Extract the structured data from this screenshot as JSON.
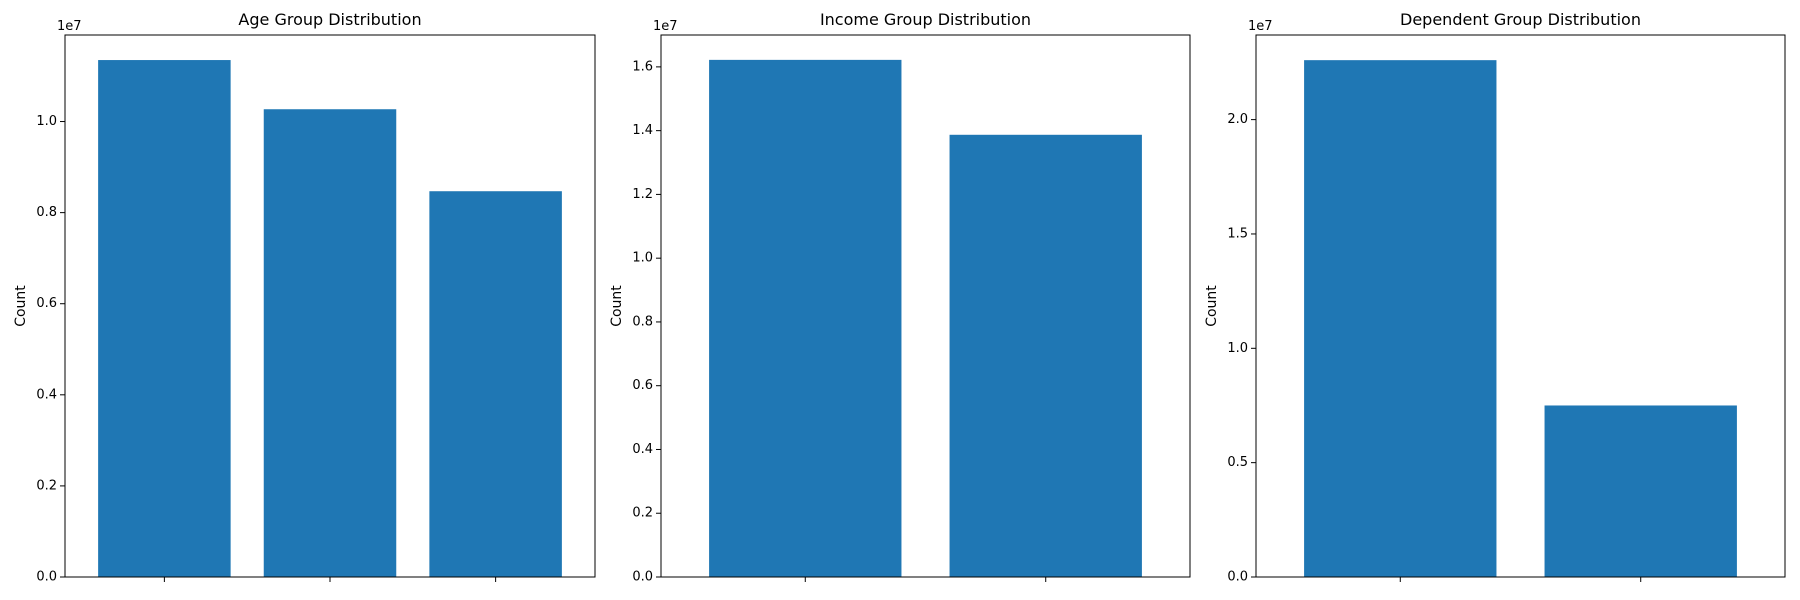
{
  "bar_color": "#1f77b4",
  "chart_data": [
    {
      "type": "bar",
      "title": "Age Group Distribution",
      "xlabel": "",
      "ylabel": "Count",
      "offset_text": "1e7",
      "scale": 10000000,
      "categories": [
        "",
        "",
        ""
      ],
      "values": [
        11350000,
        10270000,
        8470000
      ],
      "ylim": [
        0,
        11900000
      ],
      "yticks": [
        0,
        2000000,
        4000000,
        6000000,
        8000000,
        10000000
      ],
      "ytick_labels": [
        "0.0",
        "0.2",
        "0.4",
        "0.6",
        "0.8",
        "1.0"
      ],
      "grid": false,
      "legend": "none"
    },
    {
      "type": "bar",
      "title": "Income Group Distribution",
      "xlabel": "",
      "ylabel": "Count",
      "offset_text": "1e7",
      "scale": 10000000,
      "categories": [
        "",
        ""
      ],
      "values": [
        16220000,
        13870000
      ],
      "ylim": [
        0,
        17000000
      ],
      "yticks": [
        0,
        2000000,
        4000000,
        6000000,
        8000000,
        10000000,
        12000000,
        14000000,
        16000000
      ],
      "ytick_labels": [
        "0.0",
        "0.2",
        "0.4",
        "0.6",
        "0.8",
        "1.0",
        "1.2",
        "1.4",
        "1.6"
      ],
      "grid": false,
      "legend": "none"
    },
    {
      "type": "bar",
      "title": "Dependent Group Distribution",
      "xlabel": "",
      "ylabel": "Count",
      "offset_text": "1e7",
      "scale": 10000000,
      "categories": [
        "",
        ""
      ],
      "values": [
        22600000,
        7500000
      ],
      "ylim": [
        0,
        23700000
      ],
      "yticks": [
        0,
        5000000,
        10000000,
        15000000,
        20000000
      ],
      "ytick_labels": [
        "0.0",
        "0.5",
        "1.0",
        "1.5",
        "2.0"
      ],
      "grid": false,
      "legend": "none"
    }
  ]
}
